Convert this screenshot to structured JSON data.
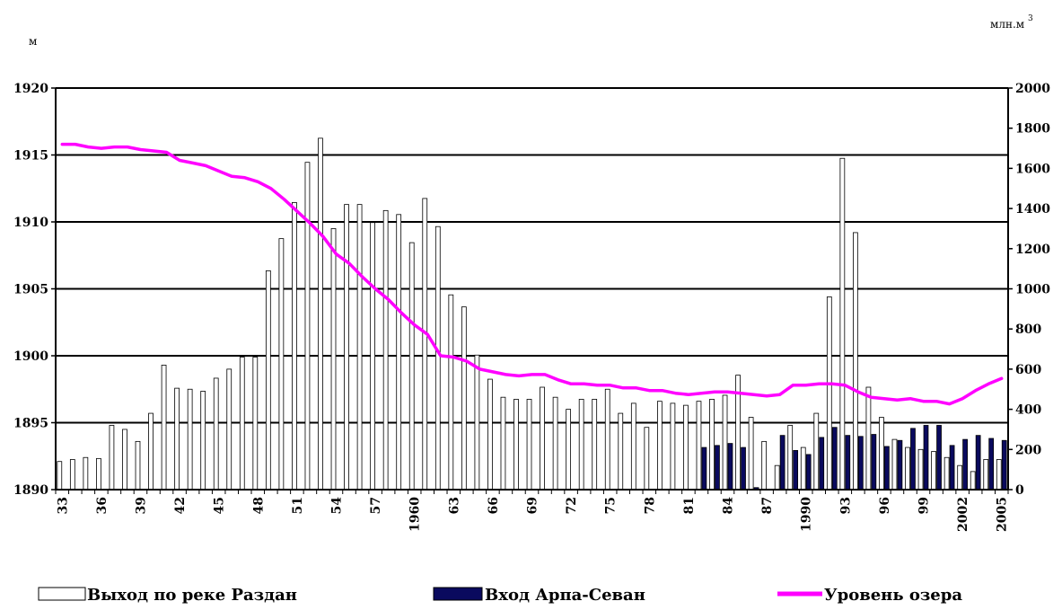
{
  "chart_data": {
    "type": "bar",
    "title": "",
    "left_axis": {
      "unit": "м",
      "ylim": [
        1890,
        1920
      ],
      "ticks": [
        1890,
        1895,
        1900,
        1905,
        1910,
        1915,
        1920
      ]
    },
    "right_axis": {
      "unit": "млн.м",
      "unit_sup": "3",
      "ylim": [
        0,
        2000
      ],
      "ticks": [
        0,
        200,
        400,
        600,
        800,
        1000,
        1200,
        1400,
        1600,
        1800,
        2000
      ]
    },
    "x_labels": [
      "33",
      "36",
      "39",
      "42",
      "45",
      "48",
      "51",
      "54",
      "57",
      "1960",
      "63",
      "66",
      "69",
      "72",
      "75",
      "78",
      "81",
      "84",
      "87",
      "1990",
      "93",
      "96",
      "99",
      "2002",
      "2005"
    ],
    "grid": "horizontal",
    "legend_position": "bottom",
    "years": [
      1933,
      1934,
      1935,
      1936,
      1937,
      1938,
      1939,
      1940,
      1941,
      1942,
      1943,
      1944,
      1945,
      1946,
      1947,
      1948,
      1949,
      1950,
      1951,
      1952,
      1953,
      1954,
      1955,
      1956,
      1957,
      1958,
      1959,
      1960,
      1961,
      1962,
      1963,
      1964,
      1965,
      1966,
      1967,
      1968,
      1969,
      1970,
      1971,
      1972,
      1973,
      1974,
      1975,
      1976,
      1977,
      1978,
      1979,
      1980,
      1981,
      1982,
      1983,
      1984,
      1985,
      1986,
      1987,
      1988,
      1989,
      1990,
      1991,
      1992,
      1993,
      1994,
      1995,
      1996,
      1997,
      1998,
      1999,
      2000,
      2001,
      2002,
      2003,
      2004,
      2005
    ],
    "series": [
      {
        "name": "Выход по реке Раздан",
        "axis": "right",
        "kind": "bar",
        "color": "#ffffff",
        "values": [
          140,
          150,
          160,
          155,
          320,
          300,
          240,
          380,
          620,
          505,
          500,
          490,
          555,
          600,
          660,
          660,
          1090,
          1250,
          1430,
          1630,
          1750,
          1300,
          1420,
          1420,
          1330,
          1390,
          1370,
          1230,
          1450,
          1310,
          970,
          910,
          670,
          550,
          460,
          450,
          450,
          510,
          460,
          400,
          450,
          450,
          500,
          380,
          430,
          310,
          440,
          430,
          420,
          440,
          450,
          470,
          570,
          360,
          240,
          120,
          320,
          210,
          380,
          960,
          1650,
          1280,
          510,
          360,
          250,
          210,
          200,
          190,
          160,
          120,
          90,
          150,
          150
        ]
      },
      {
        "name": "Вход Арпа-Севан",
        "axis": "right",
        "kind": "bar",
        "color": "#0a0a5e",
        "values": [
          0,
          0,
          0,
          0,
          0,
          0,
          0,
          0,
          0,
          0,
          0,
          0,
          0,
          0,
          0,
          0,
          0,
          0,
          0,
          0,
          0,
          0,
          0,
          0,
          0,
          0,
          0,
          0,
          0,
          0,
          0,
          0,
          0,
          0,
          0,
          0,
          0,
          0,
          0,
          0,
          0,
          0,
          0,
          0,
          0,
          0,
          0,
          0,
          0,
          210,
          220,
          230,
          210,
          10,
          0,
          270,
          195,
          175,
          260,
          310,
          270,
          265,
          275,
          215,
          245,
          305,
          320,
          320,
          220,
          250,
          270,
          255,
          245
        ]
      },
      {
        "name": "Уровень озера",
        "axis": "left",
        "kind": "line",
        "color": "#ff00ff",
        "values": [
          1915.8,
          1915.8,
          1915.6,
          1915.5,
          1915.6,
          1915.6,
          1915.4,
          1915.3,
          1915.2,
          1914.6,
          1914.4,
          1914.2,
          1913.8,
          1913.4,
          1913.3,
          1913.0,
          1912.5,
          1911.7,
          1910.8,
          1909.9,
          1908.9,
          1907.6,
          1906.9,
          1905.9,
          1905.0,
          1904.2,
          1903.2,
          1902.3,
          1901.6,
          1900.0,
          1899.9,
          1899.6,
          1899.0,
          1898.8,
          1898.6,
          1898.5,
          1898.6,
          1898.6,
          1898.2,
          1897.9,
          1897.9,
          1897.8,
          1897.8,
          1897.6,
          1897.6,
          1897.4,
          1897.4,
          1897.2,
          1897.1,
          1897.2,
          1897.3,
          1897.3,
          1897.2,
          1897.1,
          1897.0,
          1897.1,
          1897.8,
          1897.8,
          1897.9,
          1897.9,
          1897.8,
          1897.3,
          1896.9,
          1896.8,
          1896.7,
          1896.8,
          1896.6,
          1896.6,
          1896.4,
          1896.8,
          1897.4,
          1897.9,
          1898.3
        ]
      }
    ]
  }
}
